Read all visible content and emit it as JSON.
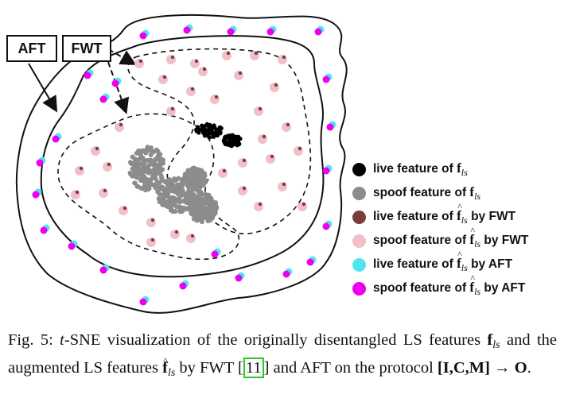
{
  "labels": {
    "aft": "AFT",
    "fwt": "FWT"
  },
  "legend": [
    {
      "color": "#000000",
      "text": "live feature of ",
      "math": "f",
      "sub": "ls",
      "suffix": "",
      "hat": false
    },
    {
      "color": "#8c8c8c",
      "text": "spoof feature of ",
      "math": "f",
      "sub": "ls",
      "suffix": "",
      "hat": false
    },
    {
      "color": "#7a3c3c",
      "text": "live feature of ",
      "math": "f",
      "sub": "ls",
      "suffix": " by FWT",
      "hat": true
    },
    {
      "color": "#f0c0c8",
      "text": "spoof feature of ",
      "math": "f",
      "sub": "ls",
      "suffix": " by FWT",
      "hat": true
    },
    {
      "color": "#4ee6ee",
      "text": "live feature of ",
      "math": "f",
      "sub": "ls",
      "suffix": " by AFT",
      "hat": true
    },
    {
      "color": "#ee00ee",
      "text": "spoof feature of ",
      "math": "f",
      "sub": "ls",
      "suffix": " by AFT",
      "hat": true
    }
  ],
  "caption": {
    "fig": "Fig. 5:",
    "t": "t",
    "p1": "-SNE visualization of the originally disentangled LS features ",
    "f": "f",
    "ls": "ls",
    "p2": " and the augmented LS features ",
    "p3": " by FWT [",
    "ref": "11",
    "p4": "] and AFT on the protocol ",
    "protocol": "[I,C,M]",
    "arrow": " → ",
    "target": "O",
    "end": "."
  },
  "colors": {
    "live": "#000000",
    "spoof": "#8c8c8c",
    "fwt_live": "#7a3c3c",
    "fwt_spoof": "#f0c0c8",
    "aft_live": "#4ee6ee",
    "aft_spoof": "#ee00ee"
  }
}
